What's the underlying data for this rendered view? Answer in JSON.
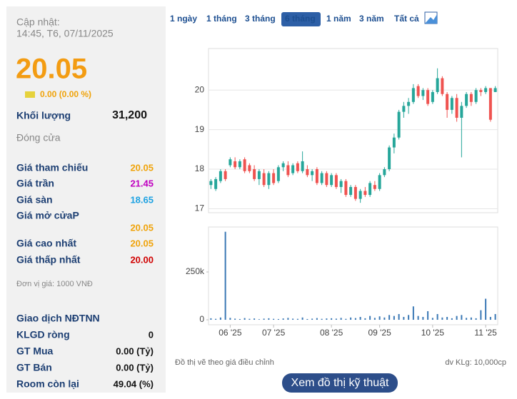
{
  "sidebar": {
    "updated_label": "Cập nhật:",
    "updated_time": "14:45, T6, 07/11/2025",
    "price": "20.05",
    "change": "0.00 (0.00 %)",
    "volume_label": "Khối lượng",
    "volume": "31,200",
    "close_label": "Đóng cửa",
    "prices": [
      {
        "label": "Giá tham chiếu",
        "value": "20.05",
        "color": "#f0a30a"
      },
      {
        "label": "Giá trần",
        "value": "21.45",
        "color": "#c000c0"
      },
      {
        "label": "Giá sàn",
        "value": "18.65",
        "color": "#1ba1e2"
      },
      {
        "label": "Giá mở cửaP",
        "value": "20.05",
        "color": "#f0a30a"
      },
      {
        "label": "Giá cao nhất",
        "value": "20.05",
        "color": "#f0a30a"
      },
      {
        "label": "Giá thấp nhất",
        "value": "20.00",
        "color": "#d00000"
      }
    ],
    "unit_note": "Đơn vị giá: 1000 VNĐ",
    "foreign_title": "Giao dịch NĐTNN",
    "foreign": [
      {
        "label": "KLGD ròng",
        "value": "0"
      },
      {
        "label": "GT Mua",
        "value": "0.00 (Tỷ)"
      },
      {
        "label": "GT Bán",
        "value": "0.00 (Tỷ)"
      },
      {
        "label": "Room còn lại",
        "value": "49.04 (%)"
      }
    ]
  },
  "ranges": {
    "items": [
      "1 ngày",
      "1 tháng",
      "3 tháng",
      "6 tháng",
      "1 năm",
      "3 năm",
      "Tất cả"
    ],
    "active": 3
  },
  "chart_data": [
    {
      "type": "candlestick",
      "up_color": "#26a69a",
      "down_color": "#ef5350",
      "ylim": [
        16.9,
        21.05
      ],
      "yticks": [
        17,
        18,
        19,
        20
      ],
      "grid": true,
      "open": [
        17.6,
        17.5,
        17.7,
        17.95,
        18.1,
        18.2,
        18.05,
        18.25,
        18.1,
        18.0,
        17.75,
        17.9,
        17.6,
        17.9,
        17.7,
        18.05,
        18.1,
        17.9,
        18.15,
        17.95,
        18.0,
        17.85,
        18.0,
        17.65,
        17.9,
        17.6,
        17.85,
        17.55,
        17.7,
        17.35,
        17.55,
        17.25,
        17.45,
        17.35,
        17.6,
        17.5,
        17.85,
        18.0,
        18.55,
        18.8,
        19.45,
        19.6,
        19.7,
        20.1,
        19.85,
        20.0,
        19.7,
        19.95,
        20.3,
        19.9,
        19.5,
        19.8,
        19.3,
        19.6,
        19.9,
        19.7,
        20.0,
        19.95,
        20.05,
        19.95
      ],
      "high": [
        17.75,
        17.8,
        18.0,
        18.0,
        18.3,
        18.3,
        18.25,
        18.3,
        18.15,
        18.1,
        18.0,
        18.0,
        17.95,
        18.0,
        18.1,
        18.2,
        18.2,
        18.15,
        18.2,
        18.45,
        18.1,
        18.0,
        18.05,
        17.95,
        17.95,
        17.9,
        17.9,
        17.75,
        17.75,
        17.6,
        17.6,
        17.5,
        17.55,
        17.7,
        17.7,
        17.9,
        18.05,
        18.6,
        18.9,
        19.5,
        19.7,
        19.8,
        20.15,
        20.15,
        20.05,
        20.05,
        20.0,
        20.55,
        20.35,
        19.95,
        19.85,
        19.9,
        19.7,
        19.95,
        19.95,
        20.05,
        20.05,
        20.1,
        20.05,
        20.1
      ],
      "low": [
        17.5,
        17.45,
        17.65,
        17.7,
        18.05,
        18.0,
        18.0,
        17.9,
        17.9,
        17.7,
        17.6,
        17.55,
        17.5,
        17.6,
        17.65,
        17.95,
        17.8,
        17.85,
        17.9,
        17.9,
        17.8,
        17.7,
        17.6,
        17.6,
        17.55,
        17.55,
        17.5,
        17.4,
        17.3,
        17.3,
        17.2,
        17.15,
        17.3,
        17.3,
        17.45,
        17.45,
        17.8,
        17.95,
        18.4,
        18.75,
        19.3,
        19.4,
        19.65,
        19.8,
        19.75,
        19.6,
        19.65,
        19.9,
        19.85,
        19.3,
        19.4,
        19.2,
        18.3,
        19.55,
        19.6,
        19.65,
        19.85,
        19.9,
        19.2,
        19.95
      ],
      "close": [
        17.7,
        17.75,
        17.95,
        17.75,
        18.25,
        18.05,
        18.2,
        17.95,
        17.95,
        17.75,
        17.95,
        17.6,
        17.9,
        17.65,
        18.05,
        18.15,
        17.85,
        18.1,
        17.95,
        18.2,
        17.85,
        17.95,
        17.65,
        17.9,
        17.6,
        17.85,
        17.55,
        17.7,
        17.35,
        17.55,
        17.25,
        17.45,
        17.35,
        17.65,
        17.5,
        17.85,
        18.0,
        18.55,
        18.8,
        19.45,
        19.6,
        19.7,
        20.05,
        19.85,
        20.0,
        19.65,
        19.95,
        20.3,
        19.9,
        19.5,
        19.8,
        19.3,
        19.6,
        19.9,
        19.7,
        20.0,
        19.95,
        20.05,
        19.25,
        20.05
      ]
    },
    {
      "type": "bar",
      "color": "#3a78b5",
      "ylim": [
        -26000,
        485000
      ],
      "yticks": [
        0,
        {
          "value": 250000,
          "label": "250k"
        }
      ],
      "categories": [
        null,
        null,
        null,
        null,
        "06 '25",
        null,
        null,
        null,
        null,
        null,
        null,
        null,
        null,
        "07 '25",
        null,
        null,
        null,
        null,
        null,
        null,
        null,
        null,
        null,
        null,
        null,
        "08 '25",
        null,
        null,
        null,
        null,
        null,
        null,
        null,
        null,
        null,
        "09 '25",
        null,
        null,
        null,
        null,
        null,
        null,
        null,
        null,
        null,
        null,
        "10 '25",
        null,
        null,
        null,
        null,
        null,
        null,
        null,
        null,
        null,
        null,
        "11 '25",
        null,
        null
      ],
      "values": [
        8000,
        5000,
        12000,
        460000,
        10000,
        6000,
        4000,
        9000,
        5000,
        7000,
        3000,
        6000,
        8000,
        5000,
        4000,
        7000,
        10000,
        6000,
        5000,
        12000,
        4000,
        6000,
        9000,
        5000,
        7000,
        8000,
        6000,
        10000,
        5000,
        12000,
        9000,
        15000,
        8000,
        20000,
        10000,
        18000,
        12000,
        25000,
        20000,
        30000,
        15000,
        25000,
        70000,
        20000,
        15000,
        45000,
        10000,
        30000,
        12000,
        15000,
        8000,
        20000,
        25000,
        10000,
        12000,
        8000,
        50000,
        110000,
        15000,
        30000
      ]
    }
  ],
  "footer": {
    "note": "Đồ thị vẽ theo giá điều chỉnh",
    "volume_unit": "dv KLg: 10,000cp",
    "button": "Xem đồ thị kỹ thuật"
  }
}
